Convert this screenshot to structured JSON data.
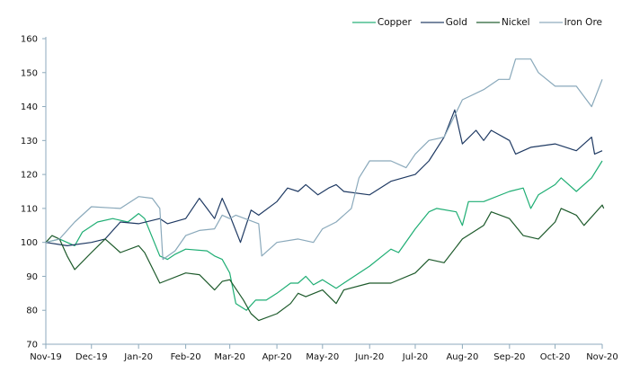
{
  "chart_data": {
    "type": "line",
    "title": "",
    "xlabel": "",
    "ylabel": "",
    "ylim": [
      70,
      160
    ],
    "yticks": [
      "70",
      "80",
      "90",
      "100",
      "110",
      "120",
      "130",
      "140",
      "150",
      "160"
    ],
    "xticks": [
      {
        "date": "2019-11-01",
        "label": "Nov-19"
      },
      {
        "date": "2019-12-01",
        "label": "Dec-19"
      },
      {
        "date": "2020-01-01",
        "label": "Jan-20"
      },
      {
        "date": "2020-02-01",
        "label": "Feb-20"
      },
      {
        "date": "2020-03-01",
        "label": "Mar-20"
      },
      {
        "date": "2020-04-01",
        "label": "Apr-20"
      },
      {
        "date": "2020-05-01",
        "label": "May-20"
      },
      {
        "date": "2020-06-01",
        "label": "Jun-20"
      },
      {
        "date": "2020-07-01",
        "label": "Jul-20"
      },
      {
        "date": "2020-08-01",
        "label": "Aug-20"
      },
      {
        "date": "2020-09-01",
        "label": "Sep-20"
      },
      {
        "date": "2020-10-01",
        "label": "Oct-20"
      },
      {
        "date": "2020-11-01",
        "label": "Nov-20"
      }
    ],
    "grid": false,
    "legend_position": "top-right",
    "series": [
      {
        "name": "Copper",
        "color": "#1fae74",
        "points": [
          [
            "2019-11-01",
            100
          ],
          [
            "2019-11-10",
            101
          ],
          [
            "2019-11-20",
            99
          ],
          [
            "2019-11-25",
            103
          ],
          [
            "2019-12-05",
            106
          ],
          [
            "2019-12-15",
            107
          ],
          [
            "2019-12-25",
            106
          ],
          [
            "2020-01-01",
            108.5
          ],
          [
            "2020-01-05",
            107
          ],
          [
            "2020-01-15",
            96
          ],
          [
            "2020-01-20",
            95
          ],
          [
            "2020-01-25",
            96.5
          ],
          [
            "2020-02-01",
            98
          ],
          [
            "2020-02-15",
            97.5
          ],
          [
            "2020-02-20",
            96
          ],
          [
            "2020-02-25",
            95
          ],
          [
            "2020-03-01",
            91
          ],
          [
            "2020-03-05",
            82
          ],
          [
            "2020-03-12",
            80
          ],
          [
            "2020-03-18",
            83
          ],
          [
            "2020-03-25",
            83
          ],
          [
            "2020-04-01",
            85
          ],
          [
            "2020-04-10",
            88
          ],
          [
            "2020-04-15",
            88
          ],
          [
            "2020-04-20",
            90
          ],
          [
            "2020-04-25",
            87.5
          ],
          [
            "2020-05-01",
            89
          ],
          [
            "2020-05-10",
            86.5
          ],
          [
            "2020-05-15",
            88
          ],
          [
            "2020-06-01",
            93
          ],
          [
            "2020-06-15",
            98
          ],
          [
            "2020-06-20",
            97
          ],
          [
            "2020-07-01",
            104
          ],
          [
            "2020-07-10",
            109
          ],
          [
            "2020-07-15",
            110
          ],
          [
            "2020-07-28",
            109
          ],
          [
            "2020-08-01",
            105
          ],
          [
            "2020-08-05",
            112
          ],
          [
            "2020-08-15",
            112
          ],
          [
            "2020-09-01",
            115
          ],
          [
            "2020-09-10",
            116
          ],
          [
            "2020-09-15",
            110
          ],
          [
            "2020-09-20",
            114
          ],
          [
            "2020-10-01",
            117
          ],
          [
            "2020-10-05",
            119
          ],
          [
            "2020-10-15",
            115
          ],
          [
            "2020-10-25",
            119
          ],
          [
            "2020-11-01",
            124
          ]
        ]
      },
      {
        "name": "Gold",
        "color": "#1f3a63",
        "points": [
          [
            "2019-11-01",
            100
          ],
          [
            "2019-11-15",
            99
          ],
          [
            "2019-12-01",
            100
          ],
          [
            "2019-12-10",
            101
          ],
          [
            "2019-12-20",
            106
          ],
          [
            "2020-01-01",
            105.5
          ],
          [
            "2020-01-15",
            107
          ],
          [
            "2020-01-20",
            105.5
          ],
          [
            "2020-02-01",
            107
          ],
          [
            "2020-02-10",
            113
          ],
          [
            "2020-02-15",
            110
          ],
          [
            "2020-02-20",
            107
          ],
          [
            "2020-02-25",
            113
          ],
          [
            "2020-03-01",
            108
          ],
          [
            "2020-03-08",
            100
          ],
          [
            "2020-03-15",
            109.5
          ],
          [
            "2020-03-20",
            108
          ],
          [
            "2020-04-01",
            112
          ],
          [
            "2020-04-08",
            116
          ],
          [
            "2020-04-15",
            115
          ],
          [
            "2020-04-20",
            117
          ],
          [
            "2020-04-28",
            114
          ],
          [
            "2020-05-05",
            116
          ],
          [
            "2020-05-10",
            117
          ],
          [
            "2020-05-15",
            115
          ],
          [
            "2020-06-01",
            114
          ],
          [
            "2020-06-15",
            118
          ],
          [
            "2020-07-01",
            120
          ],
          [
            "2020-07-10",
            124
          ],
          [
            "2020-07-20",
            131
          ],
          [
            "2020-07-27",
            139
          ],
          [
            "2020-08-01",
            129
          ],
          [
            "2020-08-10",
            133
          ],
          [
            "2020-08-15",
            130
          ],
          [
            "2020-08-20",
            133
          ],
          [
            "2020-09-01",
            130
          ],
          [
            "2020-09-05",
            126
          ],
          [
            "2020-09-15",
            128
          ],
          [
            "2020-10-01",
            129
          ],
          [
            "2020-10-15",
            127
          ],
          [
            "2020-10-25",
            131
          ],
          [
            "2020-10-27",
            126
          ],
          [
            "2020-11-01",
            127
          ]
        ]
      },
      {
        "name": "Nickel",
        "color": "#1d5a2b",
        "points": [
          [
            "2019-11-01",
            100
          ],
          [
            "2019-11-05",
            102
          ],
          [
            "2019-11-10",
            101
          ],
          [
            "2019-11-15",
            96
          ],
          [
            "2019-11-20",
            92
          ],
          [
            "2019-12-01",
            97
          ],
          [
            "2019-12-10",
            101
          ],
          [
            "2019-12-20",
            97
          ],
          [
            "2020-01-01",
            99
          ],
          [
            "2020-01-05",
            97
          ],
          [
            "2020-01-15",
            88
          ],
          [
            "2020-02-01",
            91
          ],
          [
            "2020-02-10",
            90.5
          ],
          [
            "2020-02-20",
            86
          ],
          [
            "2020-02-25",
            88.5
          ],
          [
            "2020-03-01",
            89
          ],
          [
            "2020-03-10",
            83
          ],
          [
            "2020-03-15",
            79
          ],
          [
            "2020-03-20",
            77
          ],
          [
            "2020-04-01",
            79
          ],
          [
            "2020-04-10",
            82
          ],
          [
            "2020-04-15",
            85
          ],
          [
            "2020-04-20",
            84
          ],
          [
            "2020-05-01",
            86
          ],
          [
            "2020-05-10",
            82
          ],
          [
            "2020-05-15",
            86
          ],
          [
            "2020-06-01",
            88
          ],
          [
            "2020-06-15",
            88
          ],
          [
            "2020-07-01",
            91
          ],
          [
            "2020-07-10",
            95
          ],
          [
            "2020-07-20",
            94
          ],
          [
            "2020-08-01",
            101
          ],
          [
            "2020-08-15",
            105
          ],
          [
            "2020-08-20",
            109
          ],
          [
            "2020-09-01",
            107
          ],
          [
            "2020-09-10",
            102
          ],
          [
            "2020-09-20",
            101
          ],
          [
            "2020-10-01",
            106
          ],
          [
            "2020-10-05",
            110
          ],
          [
            "2020-10-15",
            108
          ],
          [
            "2020-10-20",
            105
          ],
          [
            "2020-11-01",
            111
          ],
          [
            "2020-11-02",
            110
          ]
        ]
      },
      {
        "name": "Iron Ore",
        "color": "#8aa9bb",
        "points": [
          [
            "2019-11-01",
            100
          ],
          [
            "2019-11-10",
            101
          ],
          [
            "2019-11-20",
            106
          ],
          [
            "2019-12-01",
            110.5
          ],
          [
            "2019-12-20",
            110
          ],
          [
            "2020-01-01",
            113.5
          ],
          [
            "2020-01-10",
            113
          ],
          [
            "2020-01-15",
            110
          ],
          [
            "2020-01-17",
            95
          ],
          [
            "2020-01-25",
            97.5
          ],
          [
            "2020-02-01",
            102
          ],
          [
            "2020-02-10",
            103.5
          ],
          [
            "2020-02-20",
            104
          ],
          [
            "2020-02-25",
            108
          ],
          [
            "2020-03-01",
            107
          ],
          [
            "2020-03-05",
            108
          ],
          [
            "2020-03-20",
            105.5
          ],
          [
            "2020-03-22",
            96
          ],
          [
            "2020-04-01",
            100
          ],
          [
            "2020-04-15",
            101
          ],
          [
            "2020-04-25",
            100
          ],
          [
            "2020-05-01",
            104
          ],
          [
            "2020-05-10",
            106
          ],
          [
            "2020-05-20",
            110
          ],
          [
            "2020-05-25",
            119
          ],
          [
            "2020-06-01",
            124
          ],
          [
            "2020-06-15",
            124
          ],
          [
            "2020-06-25",
            122
          ],
          [
            "2020-07-01",
            126
          ],
          [
            "2020-07-10",
            130
          ],
          [
            "2020-07-20",
            131
          ],
          [
            "2020-08-01",
            142
          ],
          [
            "2020-08-15",
            145
          ],
          [
            "2020-08-25",
            148
          ],
          [
            "2020-09-01",
            148
          ],
          [
            "2020-09-05",
            154
          ],
          [
            "2020-09-15",
            154
          ],
          [
            "2020-09-20",
            150
          ],
          [
            "2020-10-01",
            146
          ],
          [
            "2020-10-15",
            146
          ],
          [
            "2020-10-25",
            140
          ],
          [
            "2020-11-01",
            148
          ]
        ]
      }
    ]
  }
}
